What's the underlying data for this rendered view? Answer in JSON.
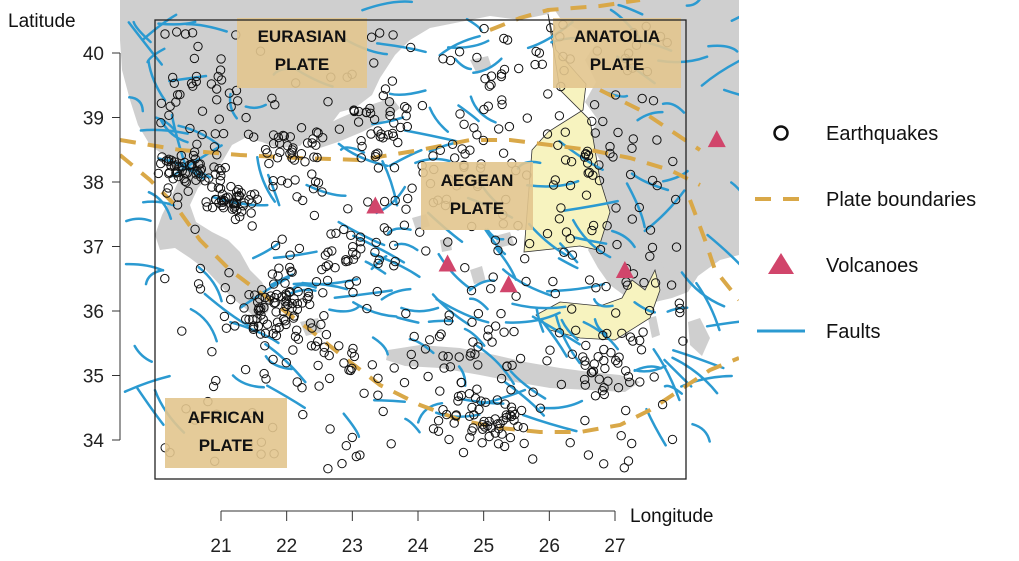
{
  "map": {
    "y_axis_title": "Latitude",
    "x_axis_title": "Longitude",
    "x_ticks": [
      21,
      22,
      23,
      24,
      25,
      26,
      27
    ],
    "y_ticks": [
      34,
      35,
      36,
      37,
      38,
      39,
      40
    ],
    "x_range": [
      19.95,
      28.8
    ],
    "y_range": [
      33.35,
      40.65
    ],
    "colors": {
      "land": "#cfcfcf",
      "sea": "#ffffff",
      "faults": "#2b9ad1",
      "plate_boundaries": "#d9a848",
      "volcanoes": "#d1456b",
      "earthquakes": "#111111",
      "plate_label_box": "#e2c58e",
      "microplate_fill": "#f7f3bf"
    }
  },
  "plates": [
    {
      "name_line1": "EURASIAN",
      "name_line2": "PLATE"
    },
    {
      "name_line1": "ANATOLIA",
      "name_line2": "PLATE"
    },
    {
      "name_line1": "AEGEAN",
      "name_line2": "PLATE"
    },
    {
      "name_line1": "AFRICAN",
      "name_line2": "PLATE"
    }
  ],
  "volcanoes": [
    {
      "lon": 23.35,
      "lat": 37.62
    },
    {
      "lon": 24.45,
      "lat": 36.72
    },
    {
      "lon": 25.38,
      "lat": 36.4
    },
    {
      "lon": 27.15,
      "lat": 36.62
    },
    {
      "lon": 28.55,
      "lat": 38.65
    }
  ],
  "earthquake_clusters": [
    {
      "lon": 20.5,
      "lat": 38.2,
      "n": 60,
      "spread": 0.25
    },
    {
      "lon": 21.15,
      "lat": 37.7,
      "n": 45,
      "spread": 0.2
    },
    {
      "lon": 21.8,
      "lat": 36.1,
      "n": 70,
      "spread": 0.35
    },
    {
      "lon": 22.0,
      "lat": 38.4,
      "n": 35,
      "spread": 0.35
    },
    {
      "lon": 23.4,
      "lat": 38.85,
      "n": 30,
      "spread": 0.4
    },
    {
      "lon": 20.7,
      "lat": 39.5,
      "n": 30,
      "spread": 0.45
    },
    {
      "lon": 25.15,
      "lat": 34.3,
      "n": 45,
      "spread": 0.3
    },
    {
      "lon": 26.9,
      "lat": 35.2,
      "n": 45,
      "spread": 0.4
    },
    {
      "lon": 26.8,
      "lat": 38.2,
      "n": 25,
      "spread": 0.35
    },
    {
      "lon": 23.0,
      "lat": 36.9,
      "n": 40,
      "spread": 0.5
    },
    {
      "lon": 24.5,
      "lat": 35.0,
      "n": 35,
      "spread": 0.55
    },
    {
      "lon": 25.5,
      "lat": 39.6,
      "n": 30,
      "spread": 0.6
    },
    {
      "lon": 27.4,
      "lat": 36.7,
      "n": 25,
      "spread": 0.5
    },
    {
      "lon": 24.4,
      "lat": 38.3,
      "n": 25,
      "spread": 0.6
    },
    {
      "lon": 22.6,
      "lat": 35.3,
      "n": 25,
      "spread": 0.4
    }
  ],
  "legend": {
    "earthquakes": "Earthquakes",
    "plate_boundaries": "Plate boundaries",
    "volcanoes": "Volcanoes",
    "faults": "Faults"
  }
}
